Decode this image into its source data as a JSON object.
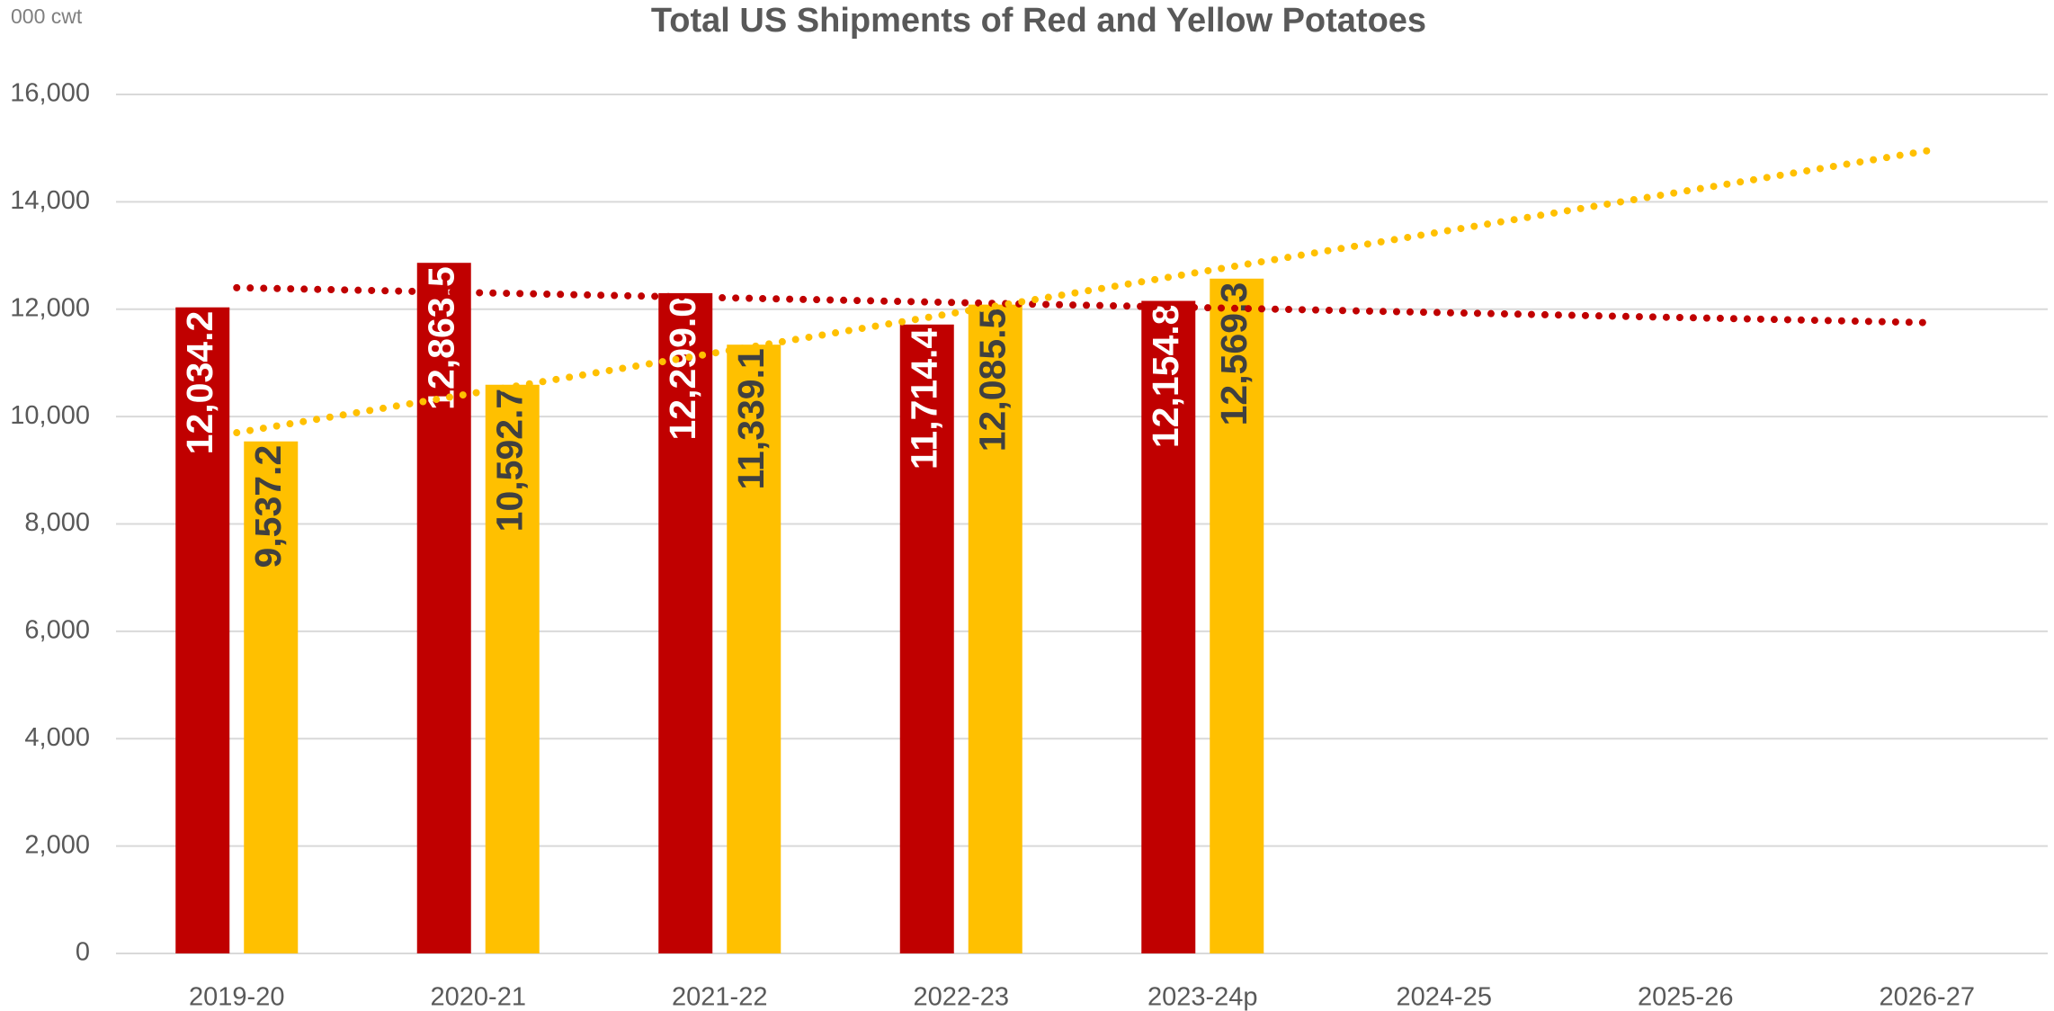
{
  "chart_data": {
    "type": "bar",
    "title": "Total US Shipments of Red and Yellow Potatoes",
    "y_unit_label": "000 cwt",
    "categories": [
      "2019-20",
      "2020-21",
      "2021-22",
      "2022-23",
      "2023-24p",
      "2024-25",
      "2025-26",
      "2026-27"
    ],
    "series": [
      {
        "color": "#c00000",
        "label_color": "#ffffff",
        "values": [
          12034.2,
          12863.5,
          12299.0,
          11714.4,
          12154.8,
          null,
          null,
          null
        ],
        "value_labels": [
          "12,034.2",
          "12,863.5",
          "12,299.0",
          "11,714.4",
          "12,154.8",
          null,
          null,
          null
        ],
        "trend": [
          12400,
          11750
        ]
      },
      {
        "color": "#ffc000",
        "label_color": "#404040",
        "values": [
          9537.2,
          10592.7,
          11339.1,
          12085.5,
          12569.3,
          null,
          null,
          null
        ],
        "value_labels": [
          "9,537.2",
          "10,592.7",
          "11,339.1",
          "12,085.5",
          "12,569.3",
          null,
          null,
          null
        ],
        "trend": [
          9700,
          14950
        ]
      }
    ],
    "ylim": [
      0,
      16000
    ],
    "yticks": [
      0,
      {
        "value": 2000,
        "label": "2,000"
      },
      {
        "value": 4000,
        "label": "4,000"
      },
      {
        "value": 6000,
        "label": "6,000"
      },
      {
        "value": 8000,
        "label": "8,000"
      },
      {
        "value": 10000,
        "label": "10,000"
      },
      {
        "value": 12000,
        "label": "12,000"
      },
      {
        "value": 14000,
        "label": "14,000"
      },
      {
        "value": 16000,
        "label": "16,000"
      }
    ],
    "grid": true
  }
}
